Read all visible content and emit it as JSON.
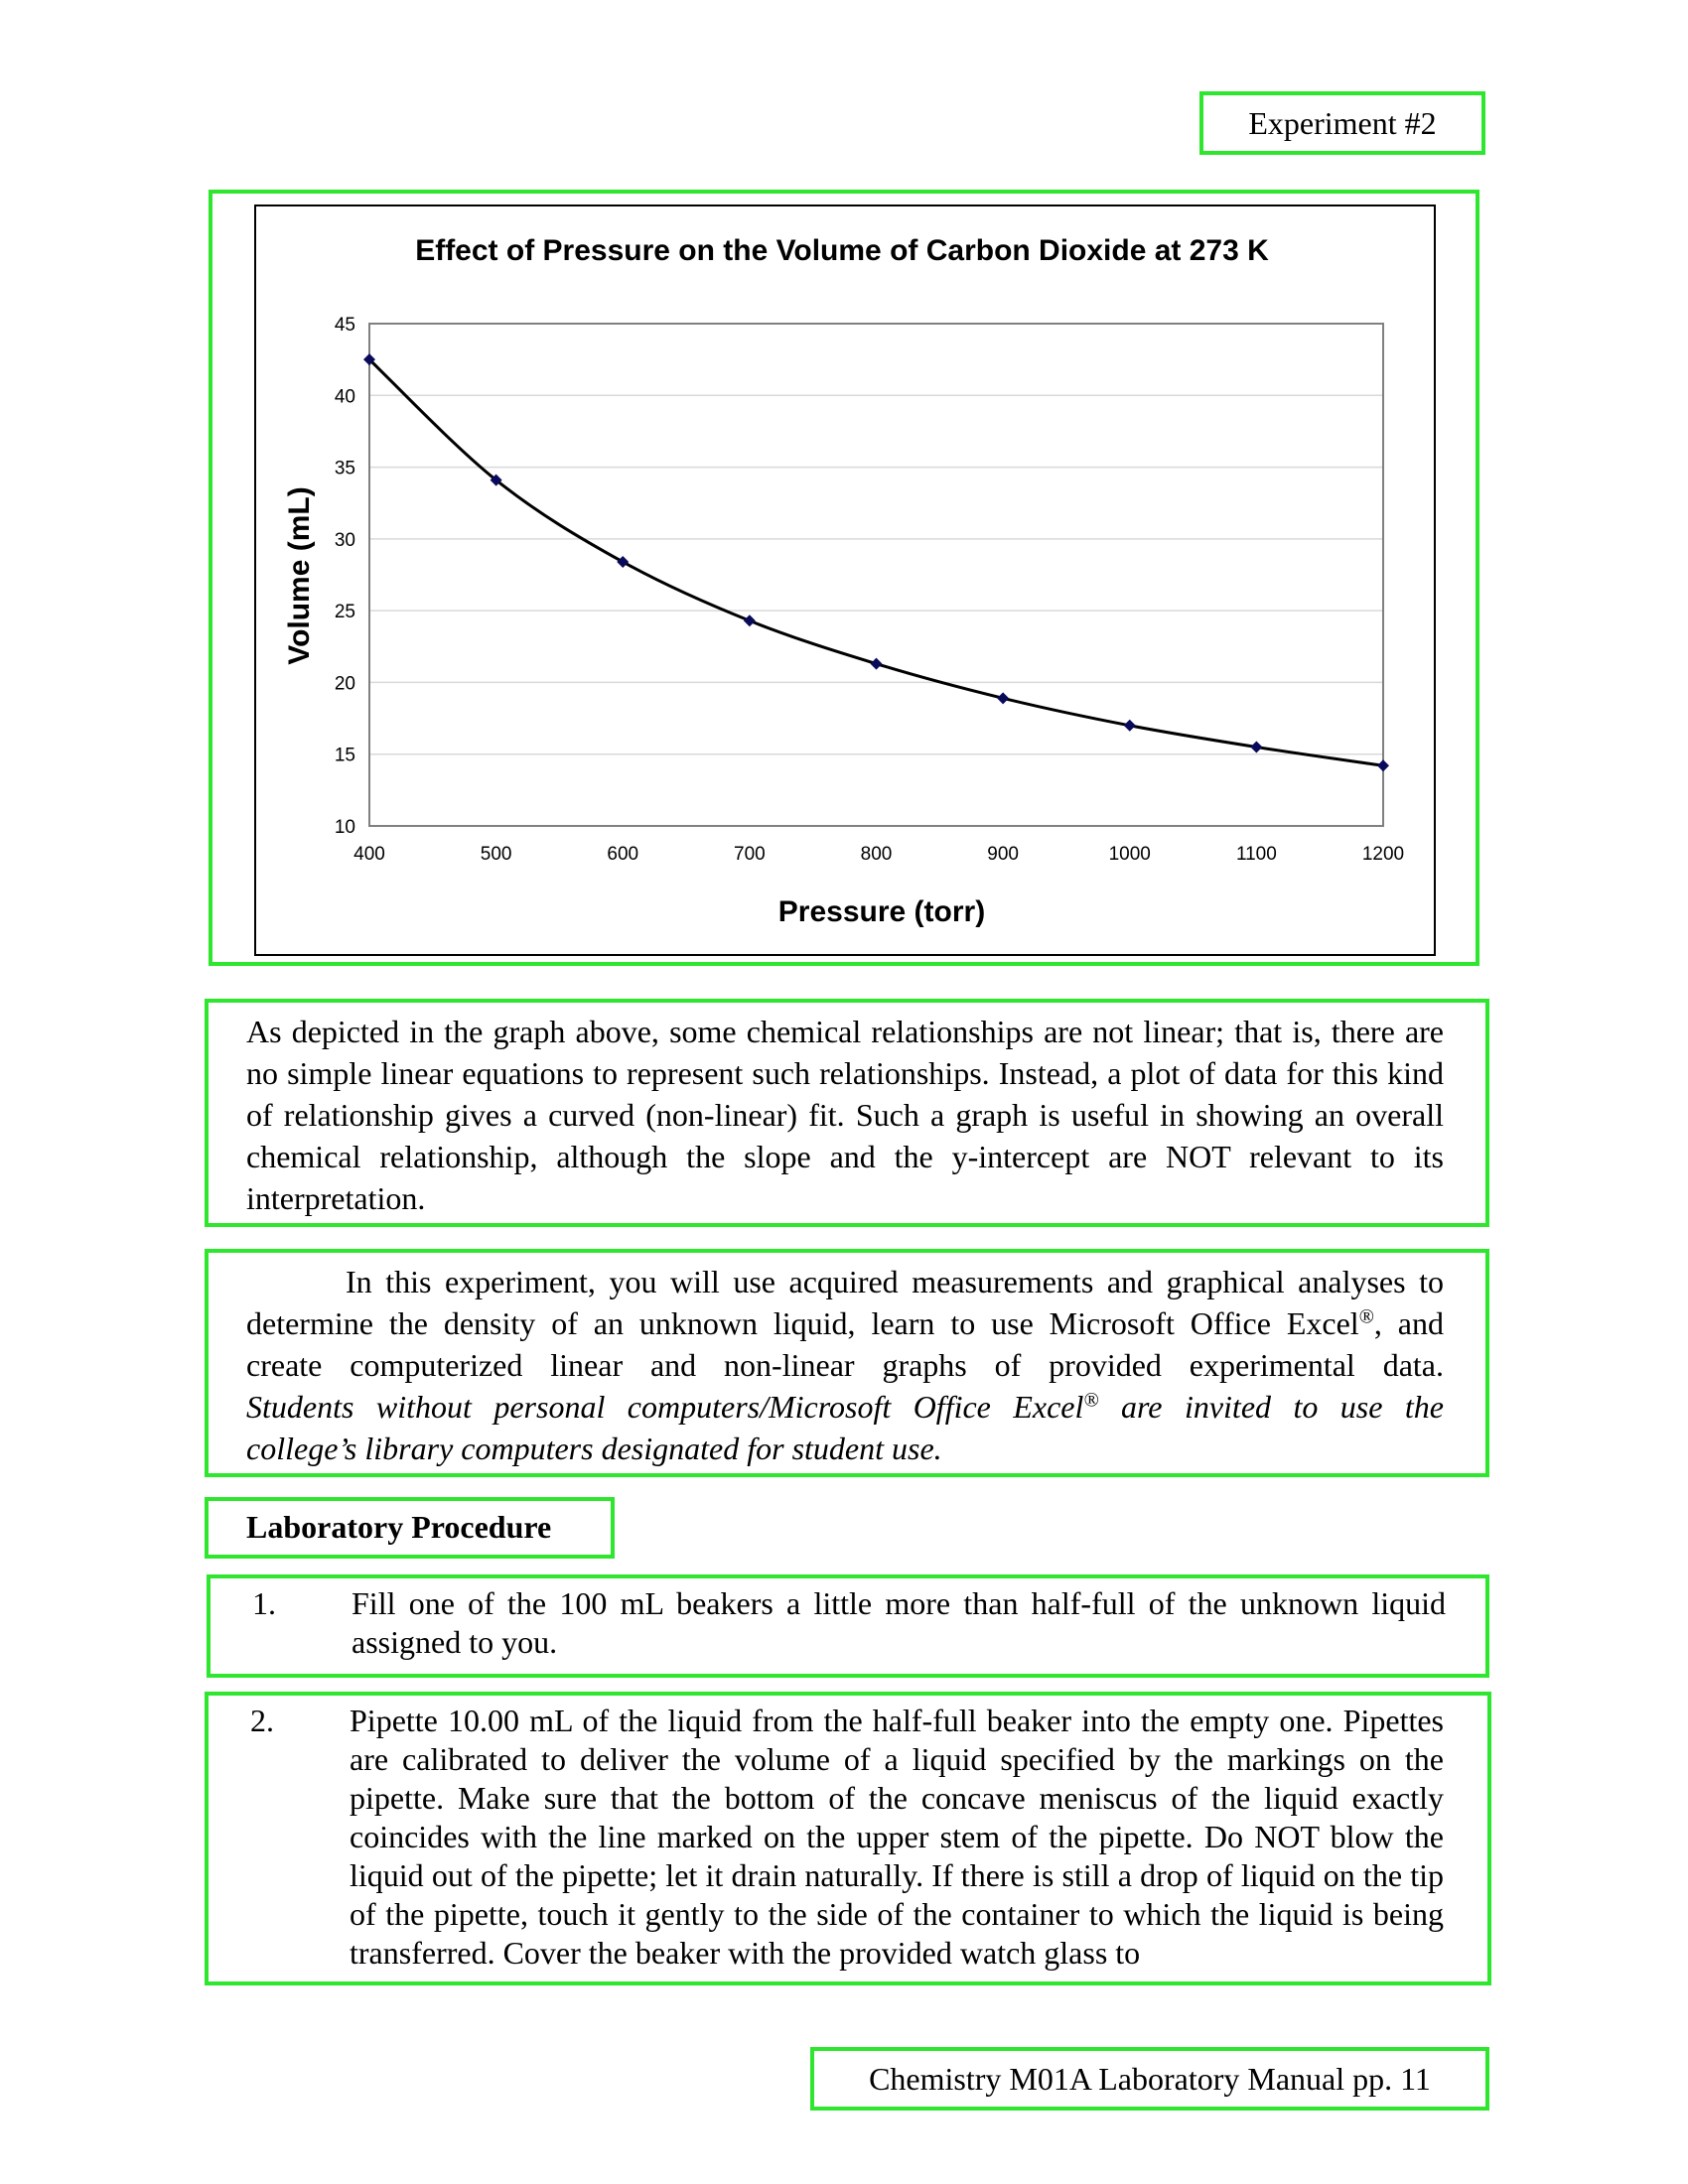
{
  "header": {
    "label": "Experiment #2"
  },
  "chart_data": {
    "type": "scatter",
    "title": "Effect of Pressure on the Volume of Carbon Dioxide at 273 K",
    "xlabel": "Pressure (torr)",
    "ylabel": "Volume (mL)",
    "xlim": [
      400,
      1200
    ],
    "ylim": [
      10,
      45
    ],
    "xticks": [
      400,
      500,
      600,
      700,
      800,
      900,
      1000,
      1100,
      1200
    ],
    "yticks": [
      10,
      15,
      20,
      25,
      30,
      35,
      40,
      45
    ],
    "grid": true,
    "legend": "none",
    "trendline": "smooth curve",
    "series": [
      {
        "x": [
          400,
          500,
          600,
          700,
          800,
          900,
          1000,
          1100,
          1200
        ],
        "y": [
          42.5,
          34.1,
          28.4,
          24.3,
          21.3,
          18.9,
          17.0,
          15.5,
          14.2
        ]
      }
    ],
    "colors": {
      "marker": "#0a0a5a",
      "line": "#000000",
      "grid": "#d9d9d9"
    }
  },
  "intro": {
    "paragraph": "As depicted in the graph above, some chemical relationships are not linear; that is, there are no simple linear equations to represent such relationships.  Instead, a plot of data for this kind of relationship gives a curved (non-linear) fit.  Such a graph is useful in showing an overall chemical relationship, although the slope and the y-intercept are NOT relevant to its interpretation."
  },
  "experiment": {
    "line1": "In this experiment, you will use acquired measurements and graphical analyses to",
    "line2_a": "determine the density of an unknown liquid, learn to use Microsoft Office Excel",
    "line2_b": ", and",
    "line3": "create computerized linear and non-linear graphs of provided experimental data.",
    "line4_a": "Students without personal computers/Microsoft Office Excel",
    "line4_b": " are invited to use the",
    "line5": "college’s library computers designated for student use.",
    "registered": "®"
  },
  "procedure": {
    "heading": "Laboratory Procedure"
  },
  "steps": [
    {
      "number": "1.",
      "text": "Fill one of the 100 mL beakers a little more than half-full of the unknown liquid assigned to you."
    },
    {
      "number": "2.",
      "text": "Pipette 10.00 mL of the liquid from the half-full beaker into the empty one. Pipettes are calibrated to deliver the volume of a liquid specified by the markings on the pipette.  Make sure that the bottom of the concave meniscus of the liquid exactly coincides with the line marked on the upper stem of the pipette.  Do NOT blow the liquid out of the pipette; let it drain naturally.  If there is still a drop of liquid on the tip of the pipette, touch it gently to the side of the container to which the liquid is being transferred.  Cover the beaker with the provided watch glass to"
    }
  ],
  "footer": {
    "label": "Chemistry M01A Laboratory Manual pp. 11"
  }
}
